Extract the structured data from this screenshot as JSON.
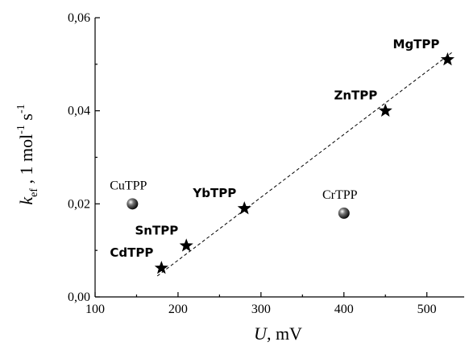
{
  "chart_data": {
    "type": "scatter",
    "xlim": [
      100,
      545
    ],
    "ylim": [
      0,
      0.06
    ],
    "x_ticks": [
      100,
      200,
      300,
      400,
      500
    ],
    "x_tick_labels": [
      "100",
      "200",
      "300",
      "400",
      "500"
    ],
    "y_ticks": [
      0,
      0.02,
      0.04,
      0.06
    ],
    "y_tick_labels": [
      "0,00",
      "0,02",
      "0,04",
      "0,06"
    ],
    "xlabel": {
      "var": "U",
      "rest": ", mV"
    },
    "ylabel": {
      "k": "k",
      "sub": "ef",
      "mid": " , 1 mol",
      "sup1": "-1",
      "s": " s",
      "sup2": "-1"
    },
    "series": [
      {
        "marker": "star",
        "points": [
          {
            "label": "CdTPP",
            "x": 180,
            "y": 0.0062,
            "label_pos": "left-up"
          },
          {
            "label": "SnTPP",
            "x": 210,
            "y": 0.011,
            "label_pos": "left-up"
          },
          {
            "label": "YbTPP",
            "x": 280,
            "y": 0.019,
            "label_pos": "left-up"
          },
          {
            "label": "ZnTPP",
            "x": 450,
            "y": 0.04,
            "label_pos": "left-up"
          },
          {
            "label": "MgTPP",
            "x": 525,
            "y": 0.051,
            "label_pos": "left-up"
          }
        ]
      },
      {
        "marker": "sphere",
        "points": [
          {
            "label": "CuTPP",
            "x": 145,
            "y": 0.02,
            "label_pos": "up"
          },
          {
            "label": "CrTPP",
            "x": 400,
            "y": 0.018,
            "label_pos": "up"
          }
        ]
      }
    ],
    "fit_line": {
      "x": [
        175,
        530
      ],
      "y": [
        0.0045,
        0.0525
      ],
      "style": "dashed"
    },
    "grid": false
  }
}
